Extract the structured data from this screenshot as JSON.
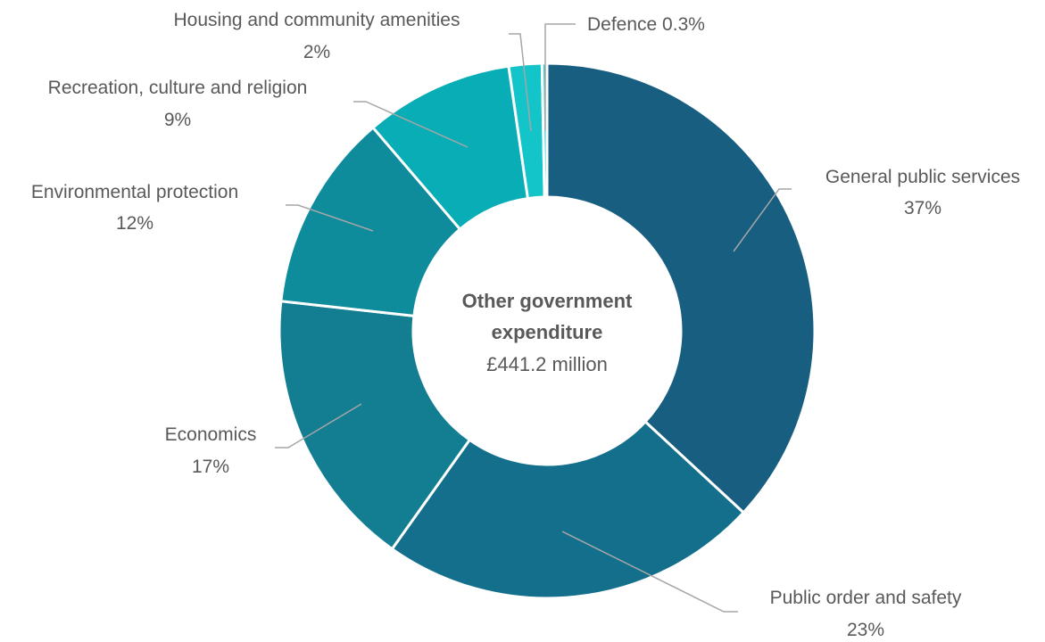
{
  "chart_data": {
    "type": "pie",
    "donut": true,
    "center_title_lines": [
      "Other government",
      "expenditure"
    ],
    "center_value": "£441.2 million",
    "legend": "none",
    "categories": [
      "General public services",
      "Public order and safety",
      "Economics",
      "Environmental protection",
      "Recreation, culture and religion",
      "Housing and community amenities",
      "Defence"
    ],
    "values": [
      37,
      23,
      17,
      12,
      9,
      2,
      0.3
    ],
    "data_labels": [
      "37%",
      "23%",
      "17%",
      "12%",
      "9%",
      "2%",
      "0.3%"
    ],
    "colors": [
      "#175E80",
      "#136F8B",
      "#137D92",
      "#0E8C9C",
      "#08ADB5",
      "#13C4C8",
      "#2BD3D6"
    ]
  }
}
